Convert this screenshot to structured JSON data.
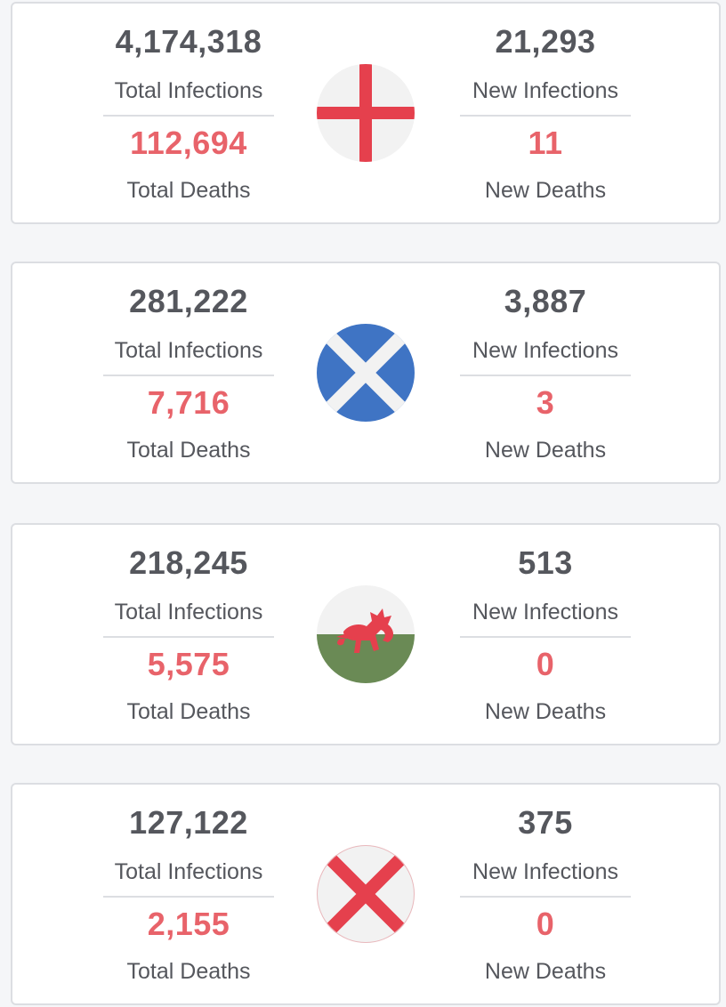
{
  "labels": {
    "total_infections": "Total Infections",
    "new_infections": "New Infections",
    "total_deaths": "Total Deaths",
    "new_deaths": "New Deaths"
  },
  "colors": {
    "number": "#55575d",
    "deaths": "#e8636a",
    "england_red": "#e5404d",
    "scotland_blue": "#3f74c4",
    "wales_green": "#6a8a55"
  },
  "nations": [
    {
      "flag_icon": "england-flag-icon",
      "total_infections": "4,174,318",
      "total_deaths": "112,694",
      "new_infections": "21,293",
      "new_deaths": "11"
    },
    {
      "flag_icon": "scotland-flag-icon",
      "total_infections": "281,222",
      "total_deaths": "7,716",
      "new_infections": "3,887",
      "new_deaths": "3"
    },
    {
      "flag_icon": "wales-flag-icon",
      "total_infections": "218,245",
      "total_deaths": "5,575",
      "new_infections": "513",
      "new_deaths": "0"
    },
    {
      "flag_icon": "northern-ireland-flag-icon",
      "total_infections": "127,122",
      "total_deaths": "2,155",
      "new_infections": "375",
      "new_deaths": "0"
    }
  ]
}
